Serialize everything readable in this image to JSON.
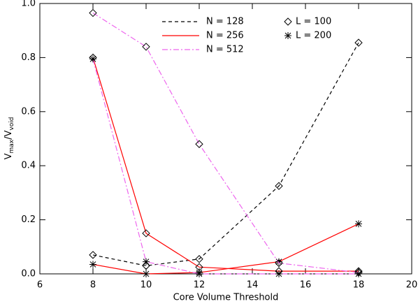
{
  "chart_data": {
    "type": "line",
    "x_label": "Core Volume Threshold",
    "y_label": [
      "V",
      "max",
      "/V",
      "void"
    ],
    "x": [
      8,
      10,
      12,
      15,
      18
    ],
    "xlim": [
      6,
      20
    ],
    "xticks": [
      6,
      8,
      10,
      12,
      14,
      16,
      18,
      20
    ],
    "ylim": [
      0,
      1.0
    ],
    "yticks": [
      {
        "value": 0,
        "label": "0.0"
      },
      {
        "value": 0.2,
        "label": "0.2"
      },
      {
        "value": 0.4,
        "label": "0.4"
      },
      {
        "value": 0.6,
        "label": "0.6"
      },
      {
        "value": 0.8,
        "label": "0.8"
      },
      {
        "value": 1.0,
        "label": "1.0"
      }
    ],
    "line_legend": [
      {
        "name": "N = 128",
        "color": "#000000",
        "dash": "dashed"
      },
      {
        "name": "N = 256",
        "color": "#ff0000",
        "dash": "solid"
      },
      {
        "name": "N = 512",
        "color": "#ee66ee",
        "dash": "dashdot"
      }
    ],
    "marker_legend": [
      {
        "name": "L = 100",
        "marker": "diamond"
      },
      {
        "name": "L = 200",
        "marker": "asterisk"
      }
    ],
    "series": [
      {
        "style": 0,
        "marker": 0,
        "values": [
          0.07,
          0.03,
          0.055,
          0.325,
          0.855
        ]
      },
      {
        "style": 1,
        "marker": 0,
        "values": [
          0.8,
          0.15,
          0.025,
          0.01,
          0.01
        ]
      },
      {
        "style": 1,
        "marker": 1,
        "values": [
          0.035,
          0.0,
          0.005,
          0.045,
          0.185
        ]
      },
      {
        "style": 2,
        "marker": 0,
        "values": [
          0.965,
          0.84,
          0.48,
          0.04,
          0.005
        ]
      },
      {
        "style": 2,
        "marker": 1,
        "values": [
          0.795,
          0.045,
          0.0,
          0.0,
          0.0
        ]
      }
    ]
  }
}
